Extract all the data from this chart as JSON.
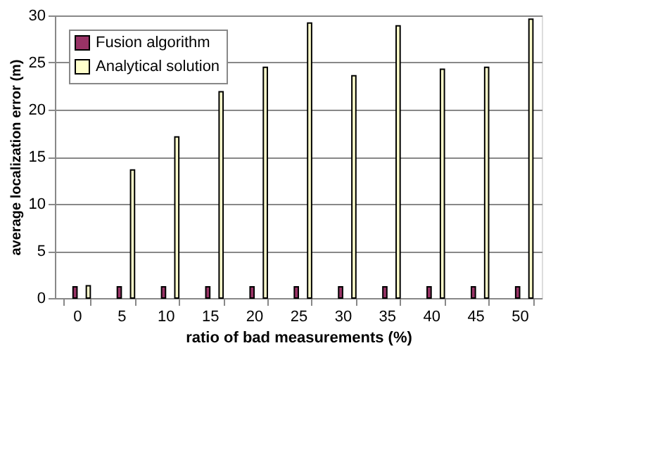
{
  "chart_data": {
    "type": "bar",
    "xlabel": "ratio of bad measurements (%)",
    "ylabel": "average localization error (m)",
    "categories": [
      "0",
      "5",
      "10",
      "15",
      "20",
      "25",
      "30",
      "35",
      "40",
      "45",
      "50"
    ],
    "series": [
      {
        "name": "Fusion algorithm",
        "color": "#993366",
        "values": [
          1.2,
          1.2,
          1.2,
          1.2,
          1.2,
          1.2,
          1.2,
          1.2,
          1.2,
          1.2,
          1.2
        ]
      },
      {
        "name": "Analytical solution",
        "color": "#ffffcc",
        "values": [
          1.3,
          13.6,
          17.1,
          21.9,
          24.5,
          29.2,
          23.6,
          28.9,
          24.3,
          24.5,
          29.6
        ]
      }
    ],
    "ylim": [
      0,
      30
    ],
    "yticks": [
      0,
      5,
      10,
      15,
      20,
      25,
      30
    ],
    "grid": "y",
    "legend": "top left"
  }
}
